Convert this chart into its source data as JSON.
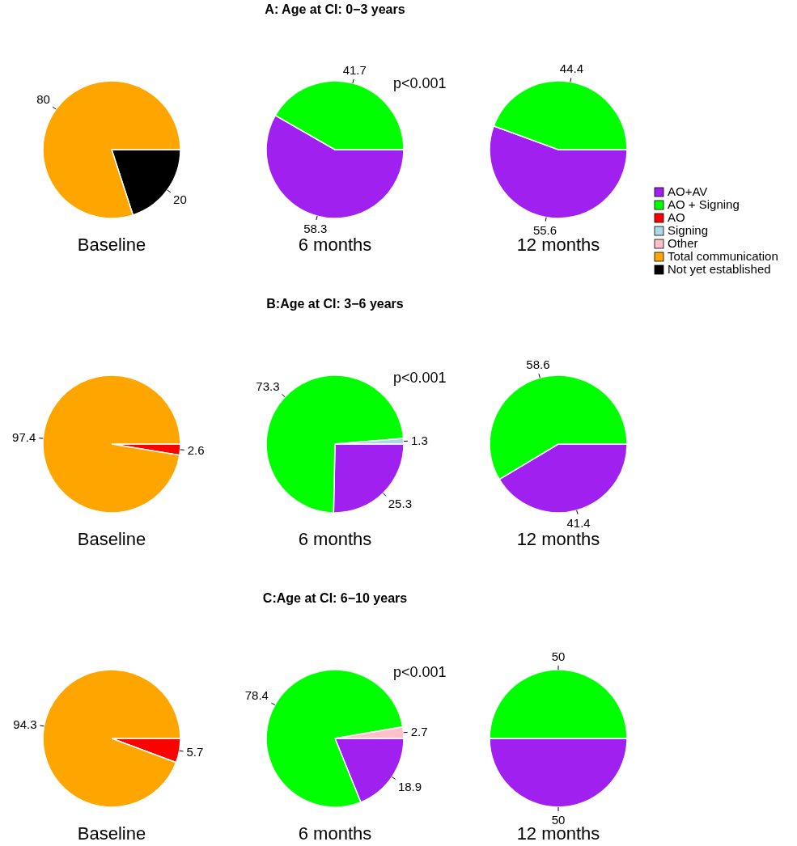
{
  "chart_data": [
    {
      "type": "pie",
      "xlabel": "Baseline",
      "categories": [
        null,
        null
      ],
      "values": [
        20,
        80
      ],
      "colors": [
        "#000000",
        "#ffa500"
      ],
      "data_labels": true
    },
    {
      "type": "pie",
      "title": "A: Age at CI: 0−3 years",
      "xlabel": "6 months",
      "categories": [
        null,
        null
      ],
      "values": [
        58.3,
        41.7
      ],
      "colors": [
        "#a020f0",
        "#00ff00"
      ],
      "data_labels": true,
      "annotations": [
        "p<0.001"
      ]
    },
    {
      "type": "pie",
      "xlabel": "12 months",
      "categories": [
        "AO+AV",
        "AO + Signing",
        "AO",
        "Signing",
        "Other",
        "Total communication",
        "Not yet established"
      ],
      "values": [
        55.6,
        44.4,
        0,
        0,
        0,
        0,
        0
      ],
      "colors": [
        "#a020f0",
        "#00ff00",
        "#ff0000",
        "#add8e6",
        "#ffc0cb",
        "#ffa500",
        "#000000"
      ],
      "data_labels": true,
      "legend": "right"
    },
    {
      "type": "pie",
      "xlabel": "Baseline",
      "categories": [
        null,
        null
      ],
      "values": [
        2.6,
        97.4
      ],
      "colors": [
        "#ff0000",
        "#ffa500"
      ],
      "data_labels": true
    },
    {
      "type": "pie",
      "title": "B:Age at CI: 3−6 years",
      "xlabel": "6 months",
      "categories": [
        null,
        null,
        null
      ],
      "values": [
        25.3,
        73.3,
        1.3
      ],
      "colors": [
        "#a020f0",
        "#00ff00",
        "#add8e6"
      ],
      "data_labels": true,
      "annotations": [
        "p<0.001"
      ]
    },
    {
      "type": "pie",
      "xlabel": "12 months",
      "categories": [
        null,
        null
      ],
      "values": [
        41.4,
        58.6
      ],
      "colors": [
        "#a020f0",
        "#00ff00"
      ],
      "data_labels": true
    },
    {
      "type": "pie",
      "xlabel": "Baseline",
      "categories": [
        null,
        null
      ],
      "values": [
        5.7,
        94.3
      ],
      "colors": [
        "#ff0000",
        "#ffa500"
      ],
      "data_labels": true
    },
    {
      "type": "pie",
      "title": "C:Age at CI: 6−10 years",
      "xlabel": "6 months",
      "categories": [
        null,
        null,
        null
      ],
      "values": [
        18.9,
        78.4,
        2.7
      ],
      "colors": [
        "#a020f0",
        "#00ff00",
        "#ffc0cb"
      ],
      "data_labels": true,
      "annotations": [
        "p<0.001"
      ]
    },
    {
      "type": "pie",
      "xlabel": "12 months",
      "categories": [
        null,
        null
      ],
      "values": [
        50,
        50
      ],
      "colors": [
        "#a020f0",
        "#00ff00"
      ],
      "data_labels": true
    }
  ]
}
